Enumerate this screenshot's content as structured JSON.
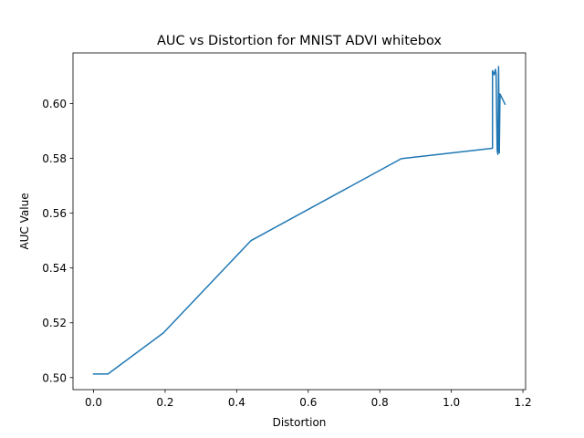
{
  "chart_data": {
    "type": "line",
    "title": "AUC vs Distortion for MNIST ADVI whitebox",
    "xlabel": "Distortion",
    "ylabel": "AUC Value",
    "xlim": [
      -0.0575,
      1.2075
    ],
    "ylim": [
      0.4956,
      0.6185
    ],
    "xticks": [
      0.0,
      0.2,
      0.4,
      0.6,
      0.8,
      1.0,
      1.2
    ],
    "xtick_labels": [
      "0.0",
      "0.2",
      "0.4",
      "0.6",
      "0.8",
      "1.0",
      "1.2"
    ],
    "yticks": [
      0.5,
      0.52,
      0.54,
      0.56,
      0.58,
      0.6
    ],
    "ytick_labels": [
      "0.50",
      "0.52",
      "0.54",
      "0.56",
      "0.58",
      "0.60"
    ],
    "grid": false,
    "series": [
      {
        "color": "#1f77b4",
        "x": [
          0.0,
          0.04,
          0.195,
          0.44,
          0.86,
          1.115,
          1.115,
          1.12,
          1.123,
          1.125,
          1.128,
          1.13,
          1.132,
          1.134,
          1.136,
          1.15
        ],
        "y": [
          0.5013,
          0.5013,
          0.5163,
          0.55,
          0.5799,
          0.5837,
          0.612,
          0.6105,
          0.6125,
          0.611,
          0.583,
          0.5815,
          0.6135,
          0.582,
          0.6035,
          0.5998
        ]
      }
    ]
  }
}
